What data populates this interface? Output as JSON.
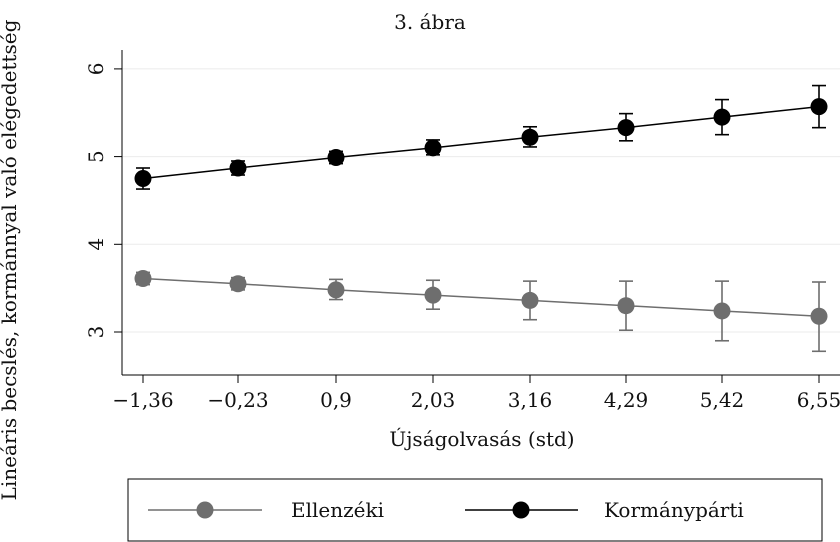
{
  "chart_data": {
    "type": "line",
    "title": "3. ábra",
    "xlabel": "Újságolvasás (std)",
    "ylabel": "Lineáris becslés, kormánnyal való elégedettség",
    "x": [
      -1.36,
      -0.23,
      0.9,
      2.03,
      3.16,
      4.29,
      5.42,
      6.55
    ],
    "x_tick_labels": [
      "−1,36",
      "−0,23",
      "0,9",
      "2,03",
      "3,16",
      "4,29",
      "5,42",
      "6,55"
    ],
    "y_ticks": [
      3,
      4,
      5,
      6
    ],
    "y_tick_labels": [
      "3",
      "4",
      "5",
      "6"
    ],
    "ylim": [
      2.5,
      6.25
    ],
    "grid": true,
    "legend_position": "bottom",
    "series": [
      {
        "name": "Ellenzéki",
        "color": "#6e6e6e",
        "values": [
          3.61,
          3.55,
          3.48,
          3.42,
          3.36,
          3.3,
          3.24,
          3.18
        ],
        "ci_low": [
          3.54,
          3.48,
          3.37,
          3.26,
          3.14,
          3.02,
          2.9,
          2.78
        ],
        "ci_high": [
          3.68,
          3.62,
          3.6,
          3.59,
          3.58,
          3.58,
          3.58,
          3.57
        ]
      },
      {
        "name": "Kormánypárti",
        "color": "#000000",
        "values": [
          4.75,
          4.87,
          4.99,
          5.1,
          5.22,
          5.33,
          5.45,
          5.57
        ],
        "ci_low": [
          4.63,
          4.79,
          4.92,
          5.02,
          5.11,
          5.18,
          5.25,
          5.33
        ],
        "ci_high": [
          4.87,
          4.95,
          5.06,
          5.19,
          5.34,
          5.49,
          5.65,
          5.81
        ]
      }
    ]
  }
}
